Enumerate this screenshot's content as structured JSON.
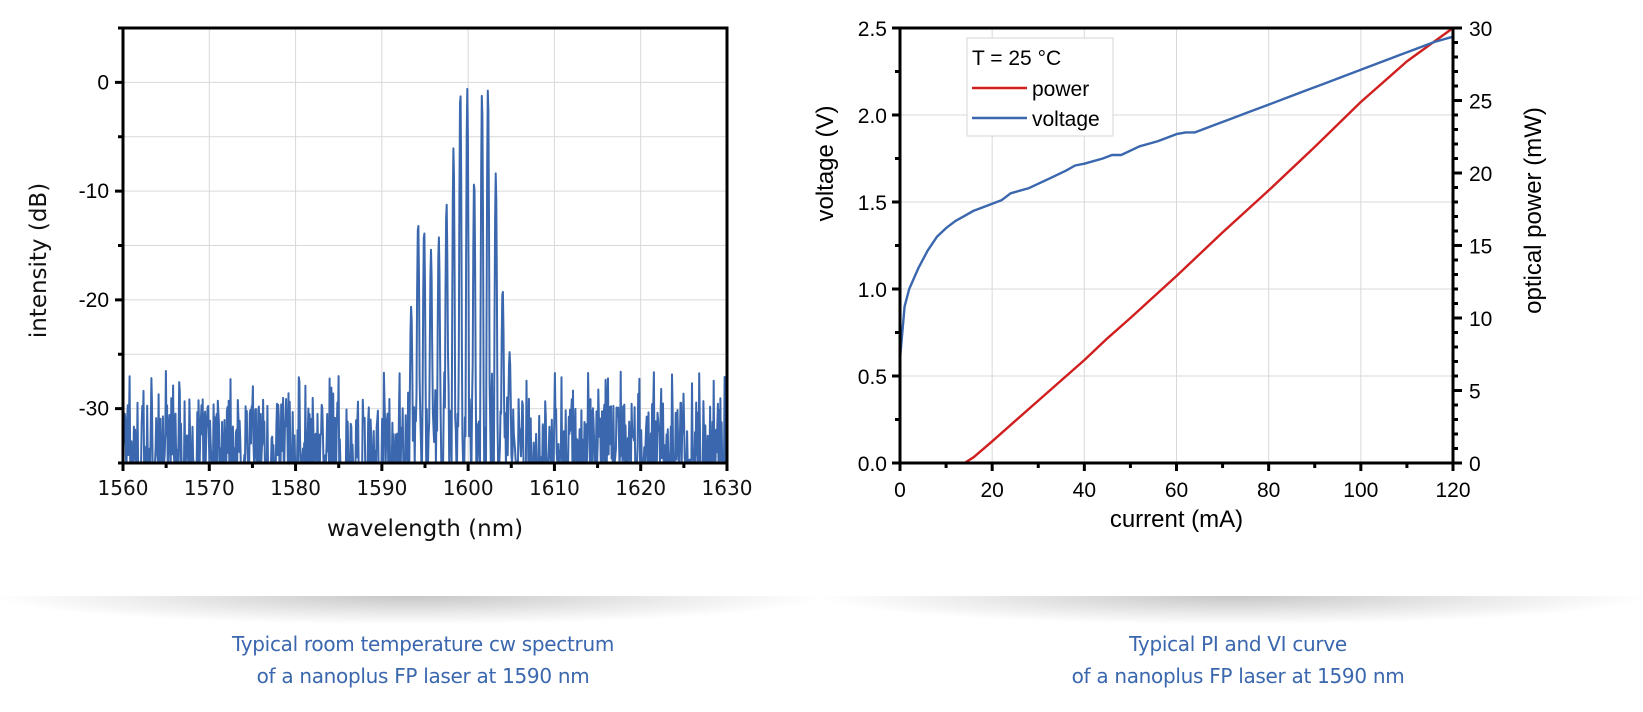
{
  "chart_data": [
    {
      "type": "line",
      "title": "",
      "xlabel": "wavelength (nm)",
      "ylabel": "intensity (dB)",
      "xlim": [
        1560,
        1630
      ],
      "ylim": [
        -35,
        5
      ],
      "xticks": [
        1560,
        1570,
        1580,
        1590,
        1600,
        1610,
        1620,
        1630
      ],
      "yticks": [
        0,
        -10,
        -20,
        -30
      ],
      "xtick_labels": [
        "1560",
        "1570",
        "1580",
        "1590",
        "1600",
        "1610",
        "1620",
        "1630"
      ],
      "ytick_labels": [
        "0",
        "-10",
        "-20",
        "-30"
      ],
      "grid": true,
      "series": [
        {
          "name": "spectrum",
          "color": "#3a67ad",
          "mode_peaks": {
            "wavelength": [
              1593.4,
              1594.2,
              1594.9,
              1595.7,
              1596.6,
              1597.5,
              1598.3,
              1599.1,
              1599.9,
              1600.7,
              1601.6,
              1602.3,
              1603.2,
              1604.0,
              1604.8,
              1605.3
            ],
            "intensity": [
              -20.6,
              -12.7,
              -13.4,
              -15.4,
              -14.2,
              -11.0,
              -6.0,
              -0.5,
              -0.6,
              -8.8,
              -0.9,
              -0.4,
              -8.3,
              -18.9,
              -24.8,
              -32.8
            ]
          },
          "noise_floor": {
            "range": [
              -35,
              -27
            ],
            "typical_peak": -30
          }
        }
      ],
      "caption": [
        "Typical room temperature cw spectrum",
        "of a nanoplus FP laser at 1590 nm"
      ]
    },
    {
      "type": "line",
      "title": "",
      "xlabel": "current (mA)",
      "ylabel": "voltage (V)",
      "y2label": "optical power (mW)",
      "xlim": [
        0,
        120
      ],
      "ylim": [
        0,
        2.5
      ],
      "y2lim": [
        0,
        30
      ],
      "xticks": [
        0,
        20,
        40,
        60,
        80,
        100,
        120
      ],
      "yticks": [
        0.0,
        0.5,
        1.0,
        1.5,
        2.0,
        2.5
      ],
      "y2ticks": [
        0,
        5,
        10,
        15,
        20,
        25,
        30
      ],
      "xtick_labels": [
        "0",
        "20",
        "40",
        "60",
        "80",
        "100",
        "120"
      ],
      "ytick_labels": [
        "0.0",
        "0.5",
        "1.0",
        "1.5",
        "2.0",
        "2.5"
      ],
      "y2tick_labels": [
        "0",
        "5",
        "10",
        "15",
        "20",
        "25",
        "30"
      ],
      "grid": true,
      "legend": {
        "title": "T = 25 °C",
        "placement": "top-left"
      },
      "series": [
        {
          "name": "power",
          "axis": "right",
          "color": "#d11f1f",
          "x": [
            0,
            10,
            14,
            16,
            20,
            30,
            40,
            45,
            50,
            60,
            70,
            80,
            90,
            100,
            110,
            120
          ],
          "y": [
            0,
            0,
            0,
            0.4,
            1.5,
            4.3,
            7.1,
            8.6,
            10.0,
            12.9,
            15.9,
            18.8,
            21.8,
            24.9,
            27.7,
            30.5
          ]
        },
        {
          "name": "voltage",
          "axis": "left",
          "color": "#3a67ad",
          "x": [
            0,
            1,
            2,
            4,
            6,
            8,
            10,
            12,
            14,
            16,
            18,
            20,
            22,
            24,
            28,
            32,
            36,
            38,
            40,
            44,
            46,
            48,
            52,
            56,
            60,
            62,
            64,
            68,
            72,
            76,
            80,
            84,
            88,
            92,
            96,
            100,
            104,
            108,
            112,
            116,
            120
          ],
          "y": [
            0.6,
            0.9,
            1.0,
            1.12,
            1.22,
            1.3,
            1.35,
            1.39,
            1.42,
            1.45,
            1.47,
            1.49,
            1.51,
            1.55,
            1.58,
            1.63,
            1.68,
            1.71,
            1.72,
            1.75,
            1.77,
            1.77,
            1.82,
            1.85,
            1.89,
            1.9,
            1.9,
            1.94,
            1.98,
            2.02,
            2.06,
            2.1,
            2.14,
            2.18,
            2.22,
            2.26,
            2.3,
            2.34,
            2.38,
            2.42,
            2.45
          ]
        }
      ],
      "caption": [
        "Typical PI and VI curve",
        "of a nanoplus FP laser at 1590 nm"
      ]
    }
  ]
}
